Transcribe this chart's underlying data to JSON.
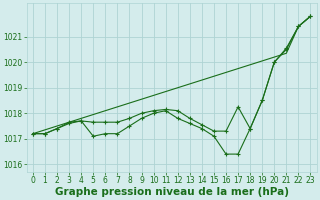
{
  "x": [
    0,
    1,
    2,
    3,
    4,
    5,
    6,
    7,
    8,
    9,
    10,
    11,
    12,
    13,
    14,
    15,
    16,
    17,
    18,
    19,
    20,
    21,
    22,
    23
  ],
  "series1": [
    1017.2,
    1017.2,
    1017.4,
    1017.65,
    1017.7,
    1017.65,
    1017.65,
    1017.65,
    1017.8,
    1018.0,
    1018.1,
    1018.15,
    1018.1,
    1017.8,
    1017.55,
    1017.3,
    1017.3,
    1018.25,
    1017.4,
    1018.5,
    1020.0,
    1020.55,
    1021.4,
    1021.8
  ],
  "series2": [
    1017.2,
    1017.2,
    1017.4,
    1017.6,
    1017.7,
    1017.1,
    1017.2,
    1017.2,
    1017.5,
    1017.8,
    1018.0,
    1018.1,
    1017.8,
    1017.6,
    1017.4,
    1017.1,
    1016.4,
    1016.4,
    1017.4,
    1018.5,
    1020.0,
    1020.5,
    1021.4,
    1021.8
  ],
  "series3": [
    1017.2,
    1017.35,
    1017.5,
    1017.65,
    1017.8,
    1017.95,
    1018.1,
    1018.25,
    1018.4,
    1018.55,
    1018.7,
    1018.85,
    1019.0,
    1019.15,
    1019.3,
    1019.45,
    1019.6,
    1019.75,
    1019.9,
    1020.05,
    1020.2,
    1020.35,
    1021.4,
    1021.8
  ],
  "line_color": "#1a6e1a",
  "bg_color": "#d4ecec",
  "grid_color": "#aed4d4",
  "text_color": "#1a6e1a",
  "xlabel": "Graphe pression niveau de la mer (hPa)",
  "ylim": [
    1015.7,
    1022.3
  ],
  "xlim": [
    -0.5,
    23.5
  ],
  "yticks": [
    1016,
    1017,
    1018,
    1019,
    1020,
    1021
  ],
  "xticks": [
    0,
    1,
    2,
    3,
    4,
    5,
    6,
    7,
    8,
    9,
    10,
    11,
    12,
    13,
    14,
    15,
    16,
    17,
    18,
    19,
    20,
    21,
    22,
    23
  ],
  "tick_fontsize": 5.5,
  "xlabel_fontsize": 7.5
}
